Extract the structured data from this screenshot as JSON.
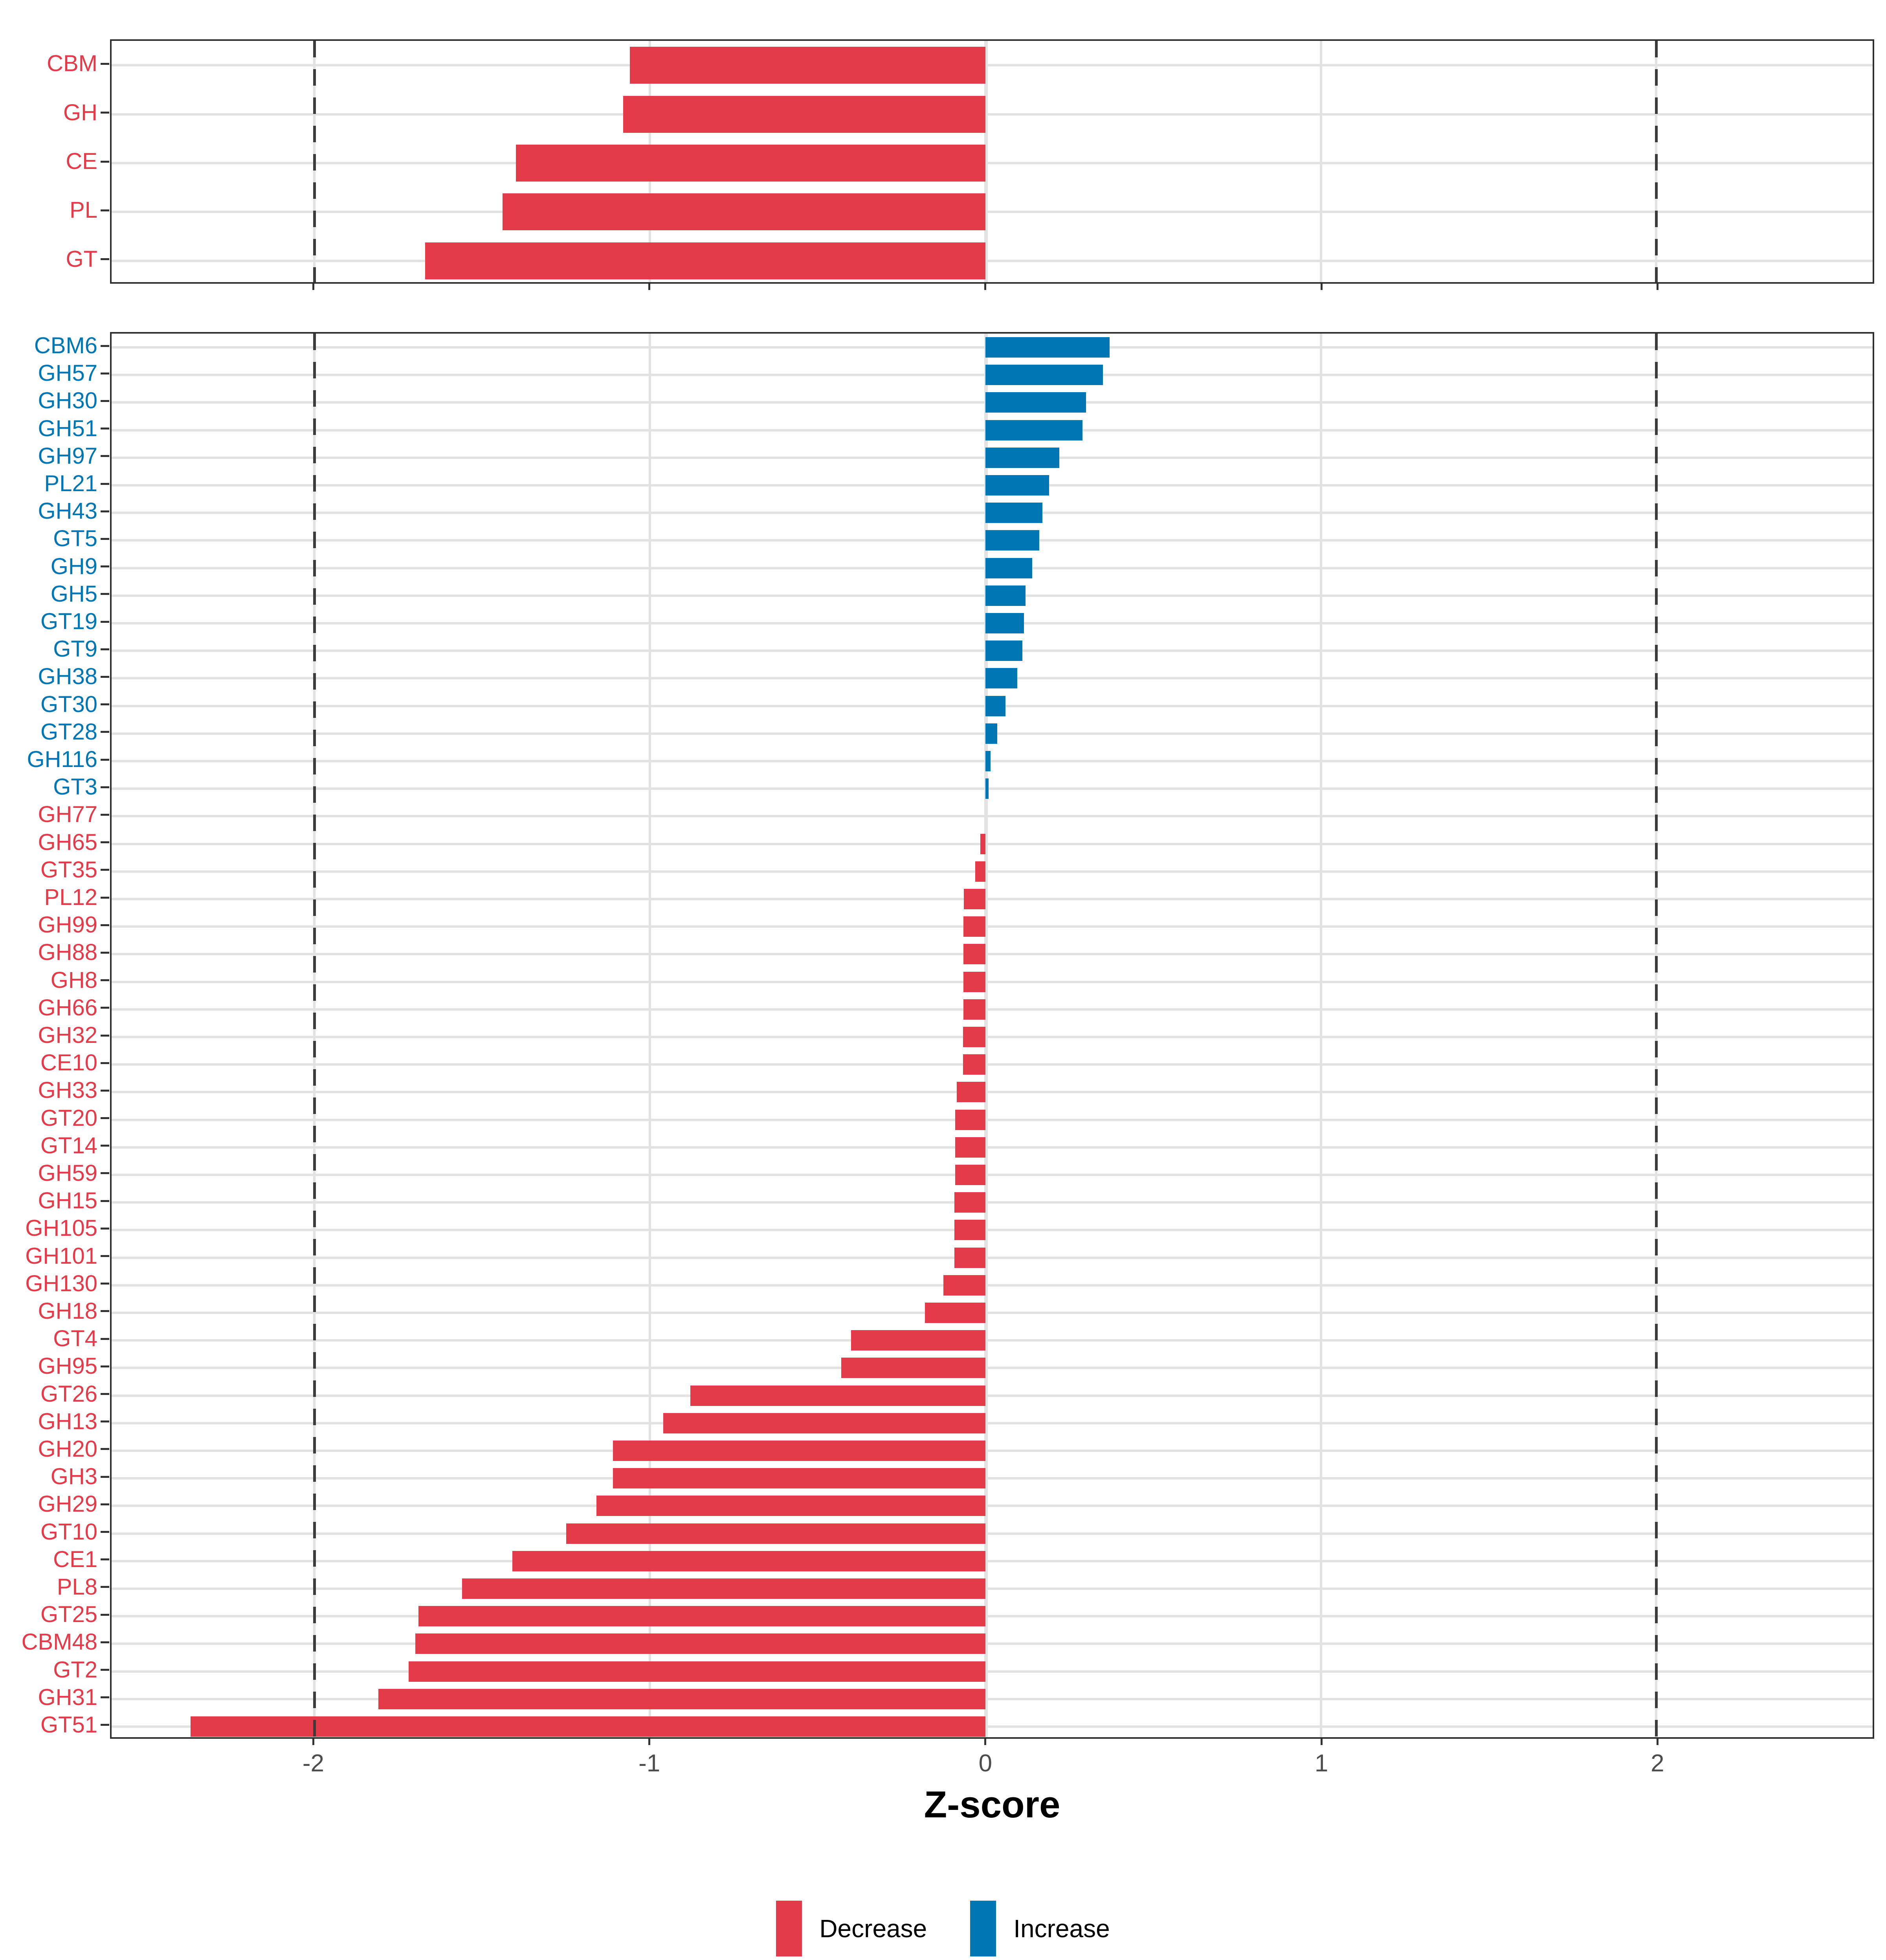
{
  "axis": {
    "title": "Z-score",
    "tick_values": [
      -2,
      -1,
      0,
      1,
      2
    ],
    "tick_labels": [
      "-2",
      "-1",
      "0",
      "1",
      "2"
    ],
    "dashed_lines_at": [
      -2,
      2
    ],
    "xlim": [
      -2.605,
      2.645
    ]
  },
  "legend": {
    "items": [
      {
        "label": "Decrease",
        "color": "#E33B49"
      },
      {
        "label": "Increase",
        "color": "#0076B4"
      }
    ]
  },
  "colors": {
    "decrease": "#E33B49",
    "increase": "#0076B4",
    "gridline": "#E2E2E2",
    "dashed_line": "#3c3c3c",
    "tick_text": "#4d4d4d",
    "panel_border": "#2e2e2e"
  },
  "chart_data": [
    {
      "type": "bar",
      "orientation": "horizontal",
      "panel": "cazyme-class",
      "title": "",
      "xlabel": "Z-score",
      "xlim": [
        -2.605,
        2.645
      ],
      "grid": true,
      "categories": [
        "CBM",
        "GH",
        "CE",
        "PL",
        "GT"
      ],
      "values": [
        -1.06,
        -1.08,
        -1.4,
        -1.44,
        -1.67
      ]
    },
    {
      "type": "bar",
      "orientation": "horizontal",
      "panel": "cazyme-family",
      "title": "",
      "xlabel": "Z-score",
      "xlim": [
        -2.605,
        2.645
      ],
      "grid": true,
      "categories": [
        "CBM6",
        "GH57",
        "GH30",
        "GH51",
        "GH97",
        "PL21",
        "GH43",
        "GT5",
        "GH9",
        "GH5",
        "GT19",
        "GT9",
        "GH38",
        "GT30",
        "GT28",
        "GH116",
        "GT3",
        "GH77",
        "GH65",
        "GT35",
        "PL12",
        "GH99",
        "GH88",
        "GH8",
        "GH66",
        "GH32",
        "CE10",
        "GH33",
        "GT20",
        "GT14",
        "GH59",
        "GH15",
        "GH105",
        "GH101",
        "GH130",
        "GH18",
        "GT4",
        "GH95",
        "GT26",
        "GH13",
        "GH20",
        "GH3",
        "GH29",
        "GT10",
        "CE1",
        "PL8",
        "GT25",
        "CBM48",
        "GT2",
        "GH31",
        "GT51"
      ],
      "values": [
        0.37,
        0.35,
        0.3,
        0.29,
        0.22,
        0.19,
        0.17,
        0.16,
        0.14,
        0.12,
        0.115,
        0.11,
        0.095,
        0.06,
        0.035,
        0.015,
        0.01,
        0.0,
        -0.015,
        -0.03,
        -0.064,
        -0.065,
        -0.065,
        -0.066,
        -0.066,
        -0.067,
        -0.067,
        -0.085,
        -0.09,
        -0.09,
        -0.09,
        -0.092,
        -0.093,
        -0.093,
        -0.125,
        -0.18,
        -0.4,
        -0.43,
        -0.88,
        -0.96,
        -1.11,
        -1.11,
        -1.16,
        -1.25,
        -1.41,
        -1.56,
        -1.69,
        -1.7,
        -1.72,
        -1.81,
        -2.37
      ]
    }
  ]
}
